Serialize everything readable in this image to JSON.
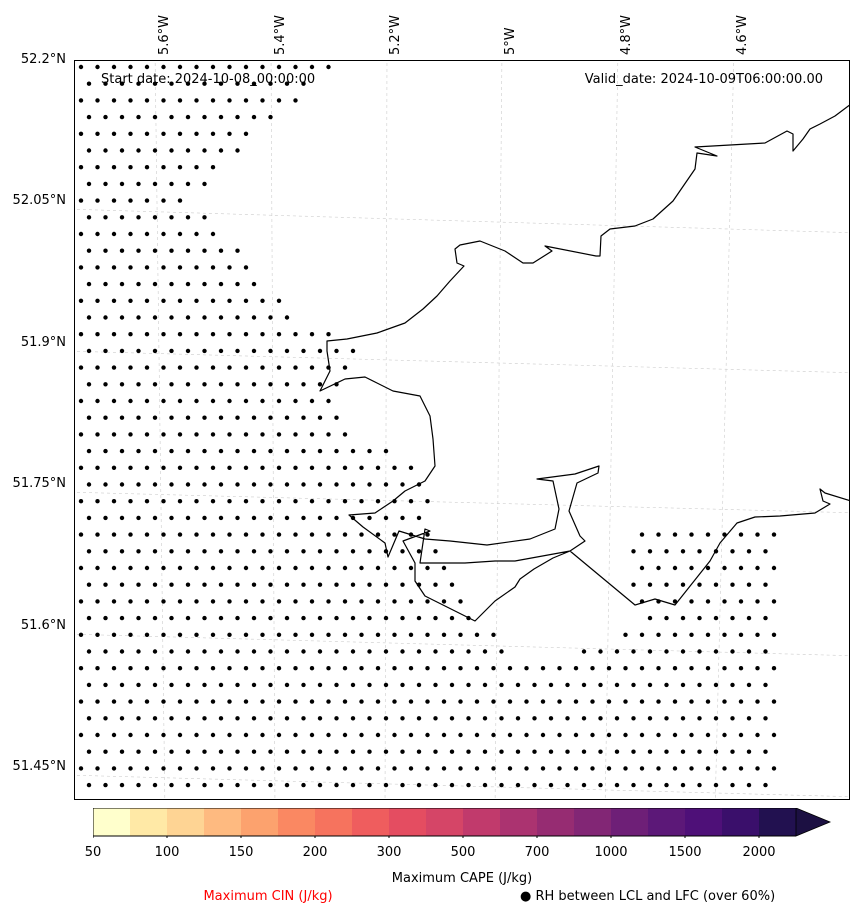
{
  "map": {
    "start_date": "Start date: 2024-10-08_00:00:00",
    "valid_date": "Valid_date: 2024-10-09T06:00:00.00",
    "lat_labels": [
      "52.2°N",
      "52.05°N",
      "51.9°N",
      "51.75°N",
      "51.6°N",
      "51.45°N"
    ],
    "lon_labels": [
      "5.6°W",
      "5.4°W",
      "5.2°W",
      "5°W",
      "4.8°W",
      "4.6°W"
    ],
    "coastline_color": "#000000",
    "gridline_color": "#cccccc",
    "marker_color": "#000000"
  },
  "colorbar": {
    "label": "Maximum CAPE (J/kg)",
    "tick_labels": [
      "50",
      "100",
      "150",
      "200",
      "300",
      "500",
      "700",
      "1000",
      "1500",
      "2000"
    ],
    "colors": [
      "#ffffcc",
      "#ffe9a6",
      "#fed494",
      "#feba80",
      "#fca26e",
      "#fa8862",
      "#f6735e",
      "#ef5d5e",
      "#e44d61",
      "#d54567",
      "#c13a6c",
      "#ab3370",
      "#962c72",
      "#822675",
      "#6e1f77",
      "#5c1878",
      "#4e1078",
      "#3a0f6b",
      "#221150"
    ],
    "extend_color": "#1c1042"
  },
  "legend": {
    "cin_label": "Maximum CIN (J/kg)",
    "cin_color": "#ff0000",
    "rh_symbol": "●",
    "rh_label": "RH between LCL and LFC (over 60%)"
  }
}
